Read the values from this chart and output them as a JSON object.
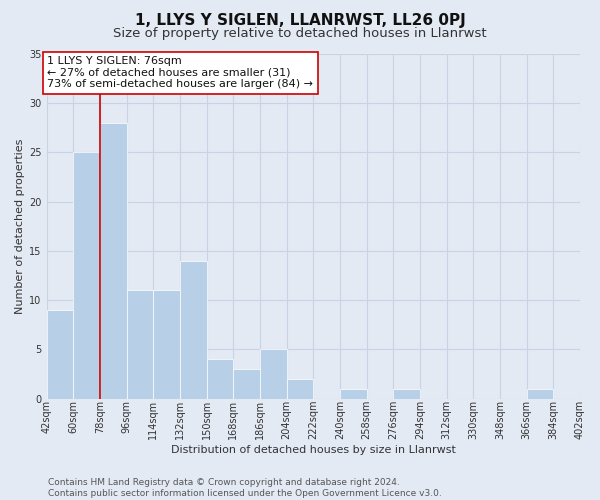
{
  "title": "1, LLYS Y SIGLEN, LLANRWST, LL26 0PJ",
  "subtitle": "Size of property relative to detached houses in Llanrwst",
  "xlabel": "Distribution of detached houses by size in Llanrwst",
  "ylabel": "Number of detached properties",
  "bin_labels": [
    "42sqm",
    "60sqm",
    "78sqm",
    "96sqm",
    "114sqm",
    "132sqm",
    "150sqm",
    "168sqm",
    "186sqm",
    "204sqm",
    "222sqm",
    "240sqm",
    "258sqm",
    "276sqm",
    "294sqm",
    "312sqm",
    "330sqm",
    "348sqm",
    "366sqm",
    "384sqm",
    "402sqm"
  ],
  "bin_edges": [
    42,
    60,
    78,
    96,
    114,
    132,
    150,
    168,
    186,
    204,
    222,
    240,
    258,
    276,
    294,
    312,
    330,
    348,
    366,
    384,
    402
  ],
  "bar_values": [
    9,
    25,
    28,
    11,
    11,
    14,
    4,
    3,
    5,
    2,
    0,
    1,
    0,
    1,
    0,
    0,
    0,
    0,
    1,
    0,
    0
  ],
  "bar_color": "#b8cfe8",
  "bar_edge_color": "#ffffff",
  "grid_color": "#c8d4e4",
  "background_color": "#e4eaf4",
  "property_line_x": 78,
  "property_line_color": "#cc0000",
  "annotation_text": "1 LLYS Y SIGLEN: 76sqm\n← 27% of detached houses are smaller (31)\n73% of semi-detached houses are larger (84) →",
  "annotation_box_color": "#ffffff",
  "annotation_box_edge": "#cc0000",
  "ylim": [
    0,
    35
  ],
  "yticks": [
    0,
    5,
    10,
    15,
    20,
    25,
    30,
    35
  ],
  "footer_line1": "Contains HM Land Registry data © Crown copyright and database right 2024.",
  "footer_line2": "Contains public sector information licensed under the Open Government Licence v3.0.",
  "title_fontsize": 11,
  "subtitle_fontsize": 9.5,
  "axis_label_fontsize": 8,
  "tick_fontsize": 7,
  "annotation_fontsize": 8,
  "footer_fontsize": 6.5
}
